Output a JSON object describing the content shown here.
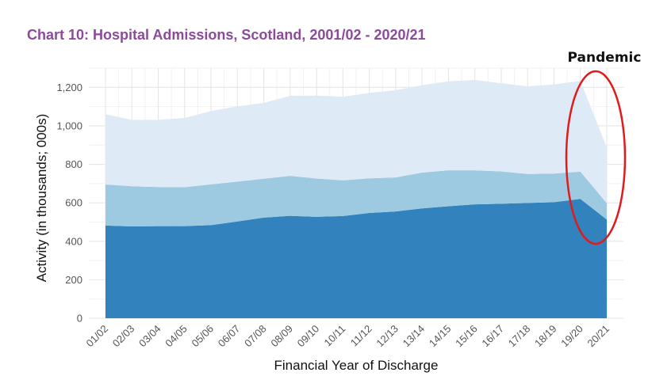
{
  "chart_data": {
    "type": "area",
    "stacked": true,
    "title": "Chart 10: Hospital Admissions, Scotland, 2001/02 - 2020/21",
    "xlabel": "Financial Year of Discharge",
    "ylabel": "Activity (in thousands; 000s)",
    "ylim": [
      0,
      1300
    ],
    "yticks": [
      0,
      200,
      400,
      600,
      800,
      1000,
      1200
    ],
    "ytick_labels": [
      "0",
      "200",
      "400",
      "600",
      "800",
      "1,000",
      "1,200"
    ],
    "categories": [
      "01/02",
      "02/03",
      "03/04",
      "04/05",
      "05/06",
      "06/07",
      "07/08",
      "08/09",
      "09/10",
      "10/11",
      "11/12",
      "12/13",
      "13/14",
      "14/15",
      "15/16",
      "16/17",
      "17/18",
      "18/19",
      "19/20",
      "20/21"
    ],
    "grid": true,
    "legend": "none",
    "series": [
      {
        "color": "#3182bd",
        "values": [
          482,
          477,
          479,
          479,
          484,
          503,
          523,
          532,
          527,
          531,
          547,
          555,
          571,
          582,
          592,
          595,
          599,
          603,
          620,
          513
        ]
      },
      {
        "color": "#9ecae1",
        "values": [
          213,
          209,
          203,
          202,
          212,
          207,
          202,
          208,
          199,
          186,
          180,
          177,
          186,
          187,
          177,
          168,
          151,
          149,
          142,
          85
        ]
      },
      {
        "color": "#deebf7",
        "values": [
          365,
          345,
          349,
          360,
          381,
          391,
          394,
          416,
          431,
          434,
          444,
          453,
          454,
          462,
          470,
          458,
          455,
          463,
          471,
          290
        ]
      }
    ]
  },
  "annotation": {
    "text": "Pandemic",
    "color": "#e01b1b"
  }
}
